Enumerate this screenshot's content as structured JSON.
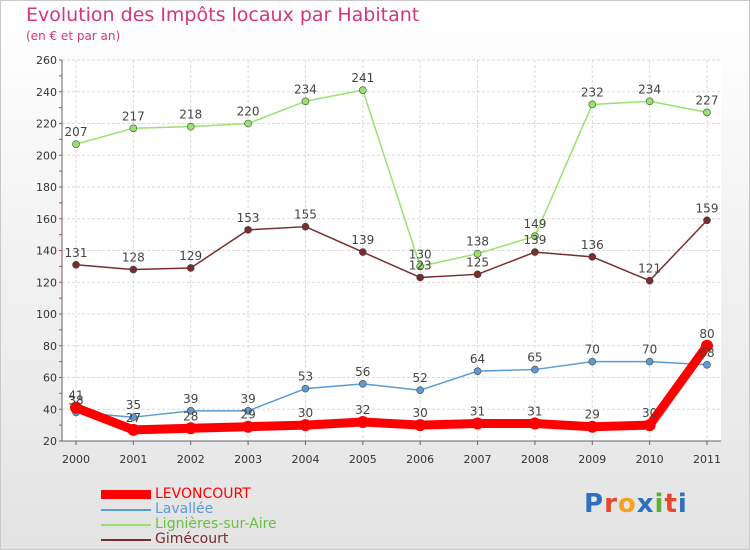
{
  "header": {
    "title": "Evolution des Impôts locaux par Habitant",
    "subtitle": "(en € et par an)"
  },
  "logo": {
    "text": "Proxiti",
    "colors": [
      "#2f6fc0",
      "#e5462d",
      "#f2a31b",
      "#2f6fc0",
      "#59b131",
      "#e5462d",
      "#2f6fc0"
    ]
  },
  "chart_data": {
    "type": "line",
    "x": [
      "2000",
      "2001",
      "2002",
      "2003",
      "2004",
      "2005",
      "2006",
      "2007",
      "2008",
      "2009",
      "2010",
      "2011"
    ],
    "ylim": [
      20,
      260
    ],
    "yticks": [
      20,
      40,
      60,
      80,
      100,
      120,
      140,
      160,
      180,
      200,
      220,
      240,
      260
    ],
    "grid": true,
    "legend_position": "bottom-left",
    "series": [
      {
        "name": "LEVONCOURT",
        "color": "#ff0000",
        "values": [
          41,
          27,
          28,
          29,
          30,
          32,
          30,
          31,
          31,
          29,
          30,
          80
        ]
      },
      {
        "name": "Lavallée",
        "color": "#5b9bd5",
        "values": [
          38,
          35,
          39,
          39,
          53,
          56,
          52,
          64,
          65,
          70,
          70,
          68
        ]
      },
      {
        "name": "Lignières-sur-Aire",
        "color": "#99e26e",
        "values": [
          207,
          217,
          218,
          220,
          234,
          241,
          130,
          138,
          149,
          232,
          234,
          227
        ]
      },
      {
        "name": "Gimécourt",
        "color": "#7b2c2c",
        "values": [
          131,
          128,
          129,
          153,
          155,
          139,
          123,
          125,
          139,
          136,
          121,
          159
        ]
      }
    ]
  }
}
